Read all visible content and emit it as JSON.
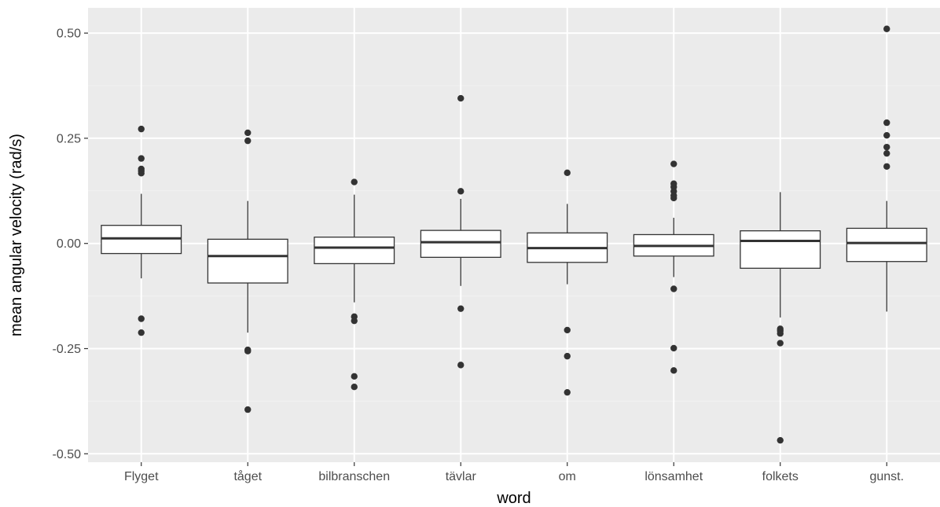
{
  "chart_data": {
    "type": "box",
    "title": "",
    "xlabel": "word",
    "ylabel": "mean angular velocity (rad/s)",
    "ylim": [
      -0.52,
      0.56
    ],
    "yticks": [
      0.5,
      0.25,
      0.0,
      -0.25,
      -0.5
    ],
    "ytick_labels": [
      "0.50",
      "0.25",
      "0.00",
      "-0.25",
      "-0.50"
    ],
    "grid": true,
    "categories": [
      "Flyget",
      "tåget",
      "bilbranschen",
      "tävlar",
      "om",
      "lönsamhet",
      "folkets",
      "gunst."
    ],
    "boxes": [
      {
        "category": "Flyget",
        "whisker_low": -0.083,
        "q1": -0.024,
        "median": 0.012,
        "q3": 0.043,
        "whisker_high": 0.118,
        "outliers": [
          0.272,
          0.202,
          0.177,
          0.172,
          0.167,
          -0.179,
          -0.212
        ]
      },
      {
        "category": "tåget",
        "whisker_low": -0.212,
        "q1": -0.094,
        "median": -0.03,
        "q3": 0.01,
        "whisker_high": 0.101,
        "outliers": [
          0.263,
          0.244,
          -0.253,
          -0.256,
          -0.395
        ]
      },
      {
        "category": "bilbranschen",
        "whisker_low": -0.14,
        "q1": -0.048,
        "median": -0.01,
        "q3": 0.015,
        "whisker_high": 0.116,
        "outliers": [
          0.146,
          -0.174,
          -0.184,
          -0.316,
          -0.341
        ]
      },
      {
        "category": "tävlar",
        "whisker_low": -0.101,
        "q1": -0.033,
        "median": 0.003,
        "q3": 0.031,
        "whisker_high": 0.106,
        "outliers": [
          0.345,
          0.124,
          -0.155,
          -0.289
        ]
      },
      {
        "category": "om",
        "whisker_low": -0.097,
        "q1": -0.045,
        "median": -0.011,
        "q3": 0.025,
        "whisker_high": 0.094,
        "outliers": [
          0.168,
          -0.206,
          -0.268,
          -0.354
        ]
      },
      {
        "category": "lönsamhet",
        "whisker_low": -0.08,
        "q1": -0.03,
        "median": -0.006,
        "q3": 0.021,
        "whisker_high": 0.061,
        "outliers": [
          0.189,
          0.142,
          0.134,
          0.124,
          0.114,
          0.108,
          -0.108,
          -0.249,
          -0.302
        ]
      },
      {
        "category": "folkets",
        "whisker_low": -0.176,
        "q1": -0.059,
        "median": 0.006,
        "q3": 0.03,
        "whisker_high": 0.122,
        "outliers": [
          -0.203,
          -0.208,
          -0.214,
          -0.237,
          -0.468
        ]
      },
      {
        "category": "gunst.",
        "whisker_low": -0.162,
        "q1": -0.043,
        "median": 0.001,
        "q3": 0.036,
        "whisker_high": 0.101,
        "outliers": [
          0.51,
          0.287,
          0.257,
          0.229,
          0.214,
          0.183
        ]
      }
    ],
    "colors": {
      "panel_background": "#ebebeb",
      "grid_major": "#ffffff",
      "grid_minor": "#f2f2f2",
      "box_fill": "#ffffff",
      "box_line": "#333333",
      "outlier": "#333333"
    }
  }
}
